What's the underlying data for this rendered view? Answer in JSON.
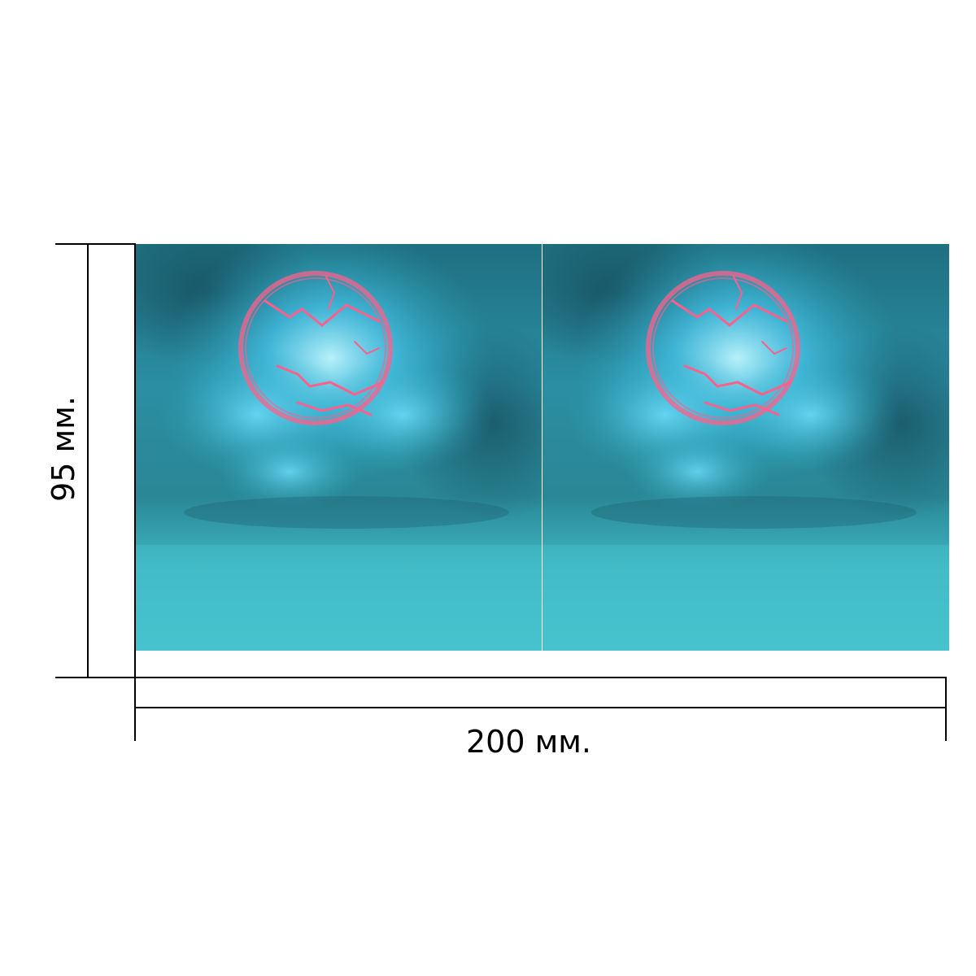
{
  "dimensions": {
    "height_label": "95 мм.",
    "width_label": "200 мм."
  },
  "artwork": {
    "description_icon": "nebula-sphere-image",
    "colors": {
      "sky_dark": "#1f6f80",
      "sky_mid": "#2aa3b8",
      "sky_bottom": "#46c4cf",
      "glow": "#7fe6ff",
      "sphere_ring": "#ff5f8a"
    }
  },
  "lines": {
    "color": "#000000"
  }
}
